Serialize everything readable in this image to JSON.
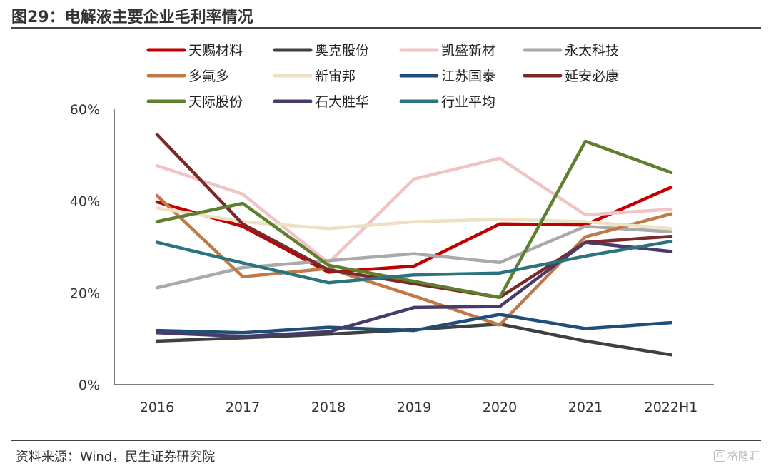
{
  "header": {
    "title": "图29：电解液主要企业毛利率情况"
  },
  "footer": {
    "source": "资料来源：Wind，民生证券研究院",
    "watermark": "格隆汇"
  },
  "chart_data": {
    "type": "line",
    "title": "",
    "xlabel": "",
    "ylabel": "",
    "categories": [
      "2016",
      "2017",
      "2018",
      "2019",
      "2020",
      "2021",
      "2022H1"
    ],
    "ylim": [
      0,
      60
    ],
    "yticks": [
      "0%",
      "20%",
      "40%",
      "60%"
    ],
    "legend_position": "top",
    "series": [
      {
        "name": "天赐材料",
        "color": "#c00000",
        "values": [
          39.8,
          34.5,
          24.5,
          25.8,
          35.0,
          34.8,
          43.0
        ]
      },
      {
        "name": "奥克股份",
        "color": "#404040",
        "values": [
          9.5,
          10.2,
          11.0,
          12.0,
          13.2,
          9.5,
          6.5
        ]
      },
      {
        "name": "凯盛新材",
        "color": "#f0c4c4",
        "values": [
          47.7,
          41.5,
          26.5,
          44.8,
          49.3,
          37.0,
          38.2
        ]
      },
      {
        "name": "永太科技",
        "color": "#aaaaaa",
        "values": [
          21.1,
          25.5,
          27.0,
          28.5,
          26.6,
          34.5,
          33.3
        ]
      },
      {
        "name": "多氟多",
        "color": "#c07a48",
        "values": [
          41.2,
          23.5,
          25.3,
          19.3,
          13.0,
          32.2,
          37.2
        ]
      },
      {
        "name": "新宙邦",
        "color": "#ede0c3",
        "values": [
          38.5,
          35.5,
          34.0,
          35.5,
          36.0,
          35.5,
          34.0
        ]
      },
      {
        "name": "江苏国泰",
        "color": "#1f4e79",
        "values": [
          11.8,
          11.3,
          12.5,
          11.8,
          15.3,
          12.2,
          13.5
        ]
      },
      {
        "name": "延安必康",
        "color": "#7a2828",
        "values": [
          54.5,
          35.0,
          25.0,
          22.0,
          19.0,
          31.0,
          32.3
        ]
      },
      {
        "name": "天际股份",
        "color": "#5e7f2e",
        "values": [
          35.5,
          39.5,
          26.0,
          22.5,
          19.0,
          53.0,
          46.2
        ]
      },
      {
        "name": "石大胜华",
        "color": "#4a3a6a",
        "values": [
          11.3,
          10.5,
          11.5,
          16.8,
          17.0,
          31.0,
          29.0
        ]
      },
      {
        "name": "行业平均",
        "color": "#2c7380",
        "values": [
          31.0,
          26.5,
          22.2,
          23.9,
          24.3,
          28.0,
          31.2
        ]
      }
    ]
  }
}
